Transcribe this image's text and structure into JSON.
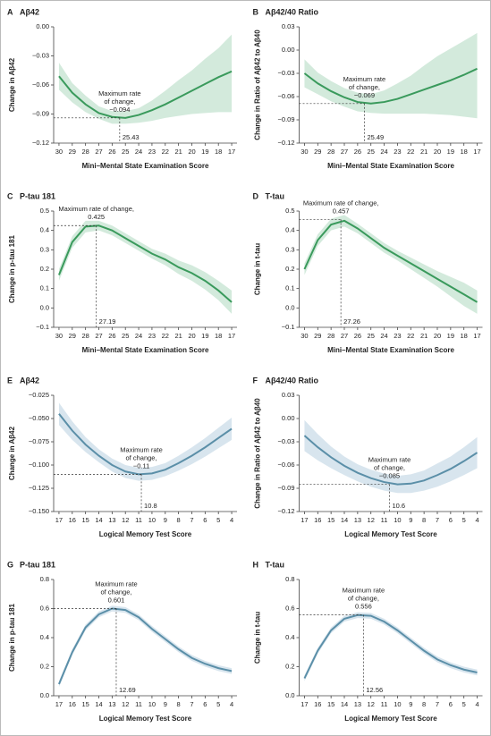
{
  "chart_data": [
    {
      "type": "line",
      "panel": "A",
      "title": "Aβ42",
      "y_label": "Change in Aβ42",
      "x_label": "Mini–Mental State Examination Score",
      "x": [
        30,
        29,
        28,
        27,
        26,
        25,
        24,
        23,
        22,
        21,
        20,
        19,
        18,
        17
      ],
      "xlim": [
        30.4,
        16.6
      ],
      "xticks": [
        30,
        29,
        28,
        27,
        26,
        25,
        24,
        23,
        22,
        21,
        20,
        19,
        18,
        17
      ],
      "ylim": [
        -0.12,
        0.0
      ],
      "yticks": [
        {
          "value": 0.0,
          "label": "0.00"
        },
        {
          "value": -0.03,
          "label": "−0.03"
        },
        {
          "value": -0.06,
          "label": "−0.06"
        },
        {
          "value": -0.09,
          "label": "−0.09"
        },
        {
          "value": -0.12,
          "label": "−0.12"
        }
      ],
      "series": [
        {
          "color": "#3a9a5c",
          "band_color": "#d3eadc",
          "values": [
            -0.051,
            -0.068,
            -0.08,
            -0.089,
            -0.093,
            -0.094,
            -0.091,
            -0.086,
            -0.08,
            -0.073,
            -0.066,
            -0.059,
            -0.052,
            -0.046
          ],
          "lower": [
            -0.065,
            -0.078,
            -0.088,
            -0.095,
            -0.1,
            -0.1,
            -0.099,
            -0.097,
            -0.094,
            -0.092,
            -0.09,
            -0.089,
            -0.088,
            -0.088
          ],
          "upper": [
            -0.037,
            -0.058,
            -0.071,
            -0.082,
            -0.087,
            -0.087,
            -0.084,
            -0.076,
            -0.066,
            -0.055,
            -0.045,
            -0.033,
            -0.022,
            -0.008
          ]
        }
      ],
      "annotation": [
        "Maximum rate",
        "of change,"
      ],
      "peak": {
        "x": 25.43,
        "y": -0.094,
        "y_label": "−0.094"
      }
    },
    {
      "type": "line",
      "panel": "B",
      "title": "Aβ42/40 Ratio",
      "y_label": "Change in Ratio of Aβ42 to Aβ40",
      "x_label": "Mini–Mental State Examination Score",
      "x": [
        30,
        29,
        28,
        27,
        26,
        25,
        24,
        23,
        22,
        21,
        20,
        19,
        18,
        17
      ],
      "xlim": [
        30.4,
        16.6
      ],
      "xticks": [
        30,
        29,
        28,
        27,
        26,
        25,
        24,
        23,
        22,
        21,
        20,
        19,
        18,
        17
      ],
      "ylim": [
        -0.12,
        0.03
      ],
      "yticks": [
        0.03,
        {
          "value": 0.0,
          "label": "0.00"
        },
        {
          "value": -0.03,
          "label": "−0.03"
        },
        {
          "value": -0.06,
          "label": "−0.06"
        },
        {
          "value": -0.09,
          "label": "−0.09"
        },
        {
          "value": -0.12,
          "label": "−0.12"
        }
      ],
      "series": [
        {
          "color": "#3a9a5c",
          "band_color": "#d3eadc",
          "values": [
            -0.03,
            -0.043,
            -0.053,
            -0.061,
            -0.067,
            -0.069,
            -0.067,
            -0.063,
            -0.057,
            -0.051,
            -0.045,
            -0.039,
            -0.032,
            -0.024
          ],
          "lower": [
            -0.048,
            -0.057,
            -0.066,
            -0.073,
            -0.079,
            -0.081,
            -0.082,
            -0.082,
            -0.082,
            -0.082,
            -0.083,
            -0.084,
            -0.086,
            -0.088
          ],
          "upper": [
            -0.012,
            -0.029,
            -0.04,
            -0.049,
            -0.055,
            -0.057,
            -0.052,
            -0.043,
            -0.033,
            -0.02,
            -0.008,
            0.002,
            0.012,
            0.022
          ]
        }
      ],
      "annotation": [
        "Maximum rate",
        "of change,"
      ],
      "peak": {
        "x": 25.49,
        "y": -0.069,
        "y_label": "−0.069"
      }
    },
    {
      "type": "line",
      "panel": "C",
      "title": "P-tau 181",
      "y_label": "Change in p-tau 181",
      "x_label": "Mini–Mental State Examination Score",
      "x": [
        30,
        29,
        28,
        27,
        26,
        25,
        24,
        23,
        22,
        21,
        20,
        19,
        18,
        17
      ],
      "xlim": [
        30.4,
        16.6
      ],
      "xticks": [
        30,
        29,
        28,
        27,
        26,
        25,
        24,
        23,
        22,
        21,
        20,
        19,
        18,
        17
      ],
      "ylim": [
        -0.1,
        0.5
      ],
      "yticks": [
        0.5,
        0.4,
        0.3,
        0.2,
        0.1,
        {
          "value": 0.0,
          "label": "0.0"
        },
        {
          "value": -0.1,
          "label": "−0.1"
        }
      ],
      "series": [
        {
          "color": "#3a9a5c",
          "band_color": "#d3eadc",
          "values": [
            0.17,
            0.34,
            0.42,
            0.425,
            0.4,
            0.36,
            0.32,
            0.28,
            0.25,
            0.21,
            0.18,
            0.14,
            0.09,
            0.03
          ],
          "lower": [
            0.14,
            0.31,
            0.39,
            0.4,
            0.375,
            0.335,
            0.295,
            0.255,
            0.22,
            0.175,
            0.14,
            0.095,
            0.04,
            -0.03
          ],
          "upper": [
            0.2,
            0.37,
            0.45,
            0.45,
            0.425,
            0.385,
            0.345,
            0.305,
            0.28,
            0.245,
            0.22,
            0.185,
            0.14,
            0.09
          ]
        }
      ],
      "annotation": [
        "Maximum rate of change,"
      ],
      "peak": {
        "x": 27.19,
        "y": 0.425
      }
    },
    {
      "type": "line",
      "panel": "D",
      "title": "T-tau",
      "y_label": "Change in t-tau",
      "x_label": "Mini–Mental State Examination Score",
      "x": [
        30,
        29,
        28,
        27,
        26,
        25,
        24,
        23,
        22,
        21,
        20,
        19,
        18,
        17
      ],
      "xlim": [
        30.4,
        16.6
      ],
      "xticks": [
        30,
        29,
        28,
        27,
        26,
        25,
        24,
        23,
        22,
        21,
        20,
        19,
        18,
        17
      ],
      "ylim": [
        -0.1,
        0.5
      ],
      "yticks": [
        0.5,
        0.4,
        0.3,
        0.2,
        0.1,
        {
          "value": 0.0,
          "label": "0.0"
        },
        {
          "value": -0.1,
          "label": "−0.1"
        }
      ],
      "series": [
        {
          "color": "#3a9a5c",
          "band_color": "#d3eadc",
          "values": [
            0.2,
            0.35,
            0.43,
            0.45,
            0.41,
            0.36,
            0.31,
            0.27,
            0.23,
            0.19,
            0.15,
            0.11,
            0.07,
            0.03
          ],
          "lower": [
            0.17,
            0.32,
            0.4,
            0.42,
            0.385,
            0.335,
            0.285,
            0.245,
            0.2,
            0.155,
            0.11,
            0.06,
            0.01,
            -0.03
          ],
          "upper": [
            0.23,
            0.38,
            0.46,
            0.48,
            0.435,
            0.385,
            0.335,
            0.295,
            0.26,
            0.225,
            0.19,
            0.16,
            0.13,
            0.09
          ]
        }
      ],
      "annotation": [
        "Maximum rate of change,"
      ],
      "peak": {
        "x": 27.26,
        "y": 0.457
      }
    },
    {
      "type": "line",
      "panel": "E",
      "title": "Aβ42",
      "y_label": "Change in Aβ42",
      "x_label": "Logical Memory Test Score",
      "x": [
        17,
        16,
        15,
        14,
        13,
        12,
        11,
        10,
        9,
        8,
        7,
        6,
        5,
        4
      ],
      "xlim": [
        17.4,
        3.6
      ],
      "xticks": [
        17,
        16,
        15,
        14,
        13,
        12,
        11,
        10,
        9,
        8,
        7,
        6,
        5,
        4
      ],
      "ylim": [
        -0.15,
        -0.025
      ],
      "yticks": [
        {
          "value": -0.025,
          "label": "−0.025"
        },
        {
          "value": -0.05,
          "label": "−0.050"
        },
        {
          "value": -0.075,
          "label": "−0.075"
        },
        {
          "value": -0.1,
          "label": "−0.100"
        },
        {
          "value": -0.125,
          "label": "−0.125"
        },
        {
          "value": -0.15,
          "label": "−0.150"
        }
      ],
      "series": [
        {
          "color": "#5b8fa8",
          "band_color": "#d8e5ee",
          "values": [
            -0.045,
            -0.063,
            -0.078,
            -0.09,
            -0.1,
            -0.107,
            -0.11,
            -0.109,
            -0.105,
            -0.098,
            -0.09,
            -0.081,
            -0.071,
            -0.061
          ],
          "lower": [
            -0.057,
            -0.073,
            -0.086,
            -0.097,
            -0.107,
            -0.114,
            -0.117,
            -0.116,
            -0.112,
            -0.106,
            -0.099,
            -0.091,
            -0.082,
            -0.073
          ],
          "upper": [
            -0.033,
            -0.053,
            -0.07,
            -0.083,
            -0.093,
            -0.1,
            -0.103,
            -0.102,
            -0.098,
            -0.09,
            -0.081,
            -0.071,
            -0.06,
            -0.049
          ]
        }
      ],
      "annotation": [
        "Maximum rate",
        "of change,"
      ],
      "peak": {
        "x": 10.8,
        "y": -0.11,
        "y_label": "−0.11"
      }
    },
    {
      "type": "line",
      "panel": "F",
      "title": "Aβ42/40 Ratio",
      "y_label": "Change in Ratio of Aβ42 to Aβ40",
      "x_label": "Logical Memory Test Score",
      "x": [
        17,
        16,
        15,
        14,
        13,
        12,
        11,
        10,
        9,
        8,
        7,
        6,
        5,
        4
      ],
      "xlim": [
        17.4,
        3.6
      ],
      "xticks": [
        17,
        16,
        15,
        14,
        13,
        12,
        11,
        10,
        9,
        8,
        7,
        6,
        5,
        4
      ],
      "ylim": [
        -0.12,
        0.03
      ],
      "yticks": [
        0.03,
        {
          "value": 0.0,
          "label": "0.00"
        },
        {
          "value": -0.03,
          "label": "−0.03"
        },
        {
          "value": -0.06,
          "label": "−0.06"
        },
        {
          "value": -0.09,
          "label": "−0.09"
        },
        {
          "value": -0.12,
          "label": "−0.12"
        }
      ],
      "series": [
        {
          "color": "#5b8fa8",
          "band_color": "#d8e5ee",
          "values": [
            -0.022,
            -0.037,
            -0.05,
            -0.061,
            -0.07,
            -0.077,
            -0.082,
            -0.085,
            -0.084,
            -0.08,
            -0.073,
            -0.065,
            -0.055,
            -0.044
          ],
          "lower": [
            -0.042,
            -0.054,
            -0.064,
            -0.073,
            -0.081,
            -0.088,
            -0.093,
            -0.096,
            -0.096,
            -0.093,
            -0.088,
            -0.081,
            -0.073,
            -0.064
          ],
          "upper": [
            -0.002,
            -0.02,
            -0.036,
            -0.049,
            -0.059,
            -0.066,
            -0.071,
            -0.074,
            -0.072,
            -0.067,
            -0.058,
            -0.049,
            -0.037,
            -0.024
          ]
        }
      ],
      "annotation": [
        "Maximum rate",
        "of change,"
      ],
      "peak": {
        "x": 10.6,
        "y": -0.085,
        "y_label": "−0.085"
      }
    },
    {
      "type": "line",
      "panel": "G",
      "title": "P-tau 181",
      "y_label": "Change in p-tau 181",
      "x_label": "Logical Memory Test Score",
      "x": [
        17,
        16,
        15,
        14,
        13,
        12,
        11,
        10,
        9,
        8,
        7,
        6,
        5,
        4
      ],
      "xlim": [
        17.4,
        3.6
      ],
      "xticks": [
        17,
        16,
        15,
        14,
        13,
        12,
        11,
        10,
        9,
        8,
        7,
        6,
        5,
        4
      ],
      "ylim": [
        0.0,
        0.8
      ],
      "yticks": [
        {
          "value": 0.0,
          "label": "0.0"
        },
        0.2,
        0.4,
        0.6,
        0.8
      ],
      "series": [
        {
          "color": "#5b8fa8",
          "band_color": "#d8e5ee",
          "values": [
            0.08,
            0.3,
            0.47,
            0.56,
            0.6,
            0.59,
            0.54,
            0.46,
            0.39,
            0.32,
            0.26,
            0.22,
            0.19,
            0.17
          ],
          "lower": [
            0.06,
            0.28,
            0.45,
            0.54,
            0.58,
            0.57,
            0.52,
            0.44,
            0.37,
            0.3,
            0.24,
            0.2,
            0.17,
            0.15
          ],
          "upper": [
            0.1,
            0.32,
            0.49,
            0.58,
            0.62,
            0.61,
            0.56,
            0.48,
            0.41,
            0.34,
            0.28,
            0.24,
            0.21,
            0.19
          ]
        }
      ],
      "annotation": [
        "Maximum rate",
        "of change,"
      ],
      "peak": {
        "x": 12.69,
        "y": 0.601
      }
    },
    {
      "type": "line",
      "panel": "H",
      "title": "T-tau",
      "y_label": "Change in t-tau",
      "x_label": "Logical Memory Test Score",
      "x": [
        17,
        16,
        15,
        14,
        13,
        12,
        11,
        10,
        9,
        8,
        7,
        6,
        5,
        4
      ],
      "xlim": [
        17.4,
        3.6
      ],
      "xticks": [
        17,
        16,
        15,
        14,
        13,
        12,
        11,
        10,
        9,
        8,
        7,
        6,
        5,
        4
      ],
      "ylim": [
        0.0,
        0.8
      ],
      "yticks": [
        {
          "value": 0.0,
          "label": "0.0"
        },
        0.2,
        0.4,
        0.6,
        0.8
      ],
      "series": [
        {
          "color": "#5b8fa8",
          "band_color": "#d8e5ee",
          "values": [
            0.12,
            0.31,
            0.45,
            0.53,
            0.555,
            0.55,
            0.51,
            0.45,
            0.38,
            0.31,
            0.25,
            0.21,
            0.18,
            0.16
          ],
          "lower": [
            0.1,
            0.29,
            0.43,
            0.51,
            0.535,
            0.53,
            0.49,
            0.43,
            0.36,
            0.29,
            0.23,
            0.19,
            0.16,
            0.14
          ],
          "upper": [
            0.14,
            0.33,
            0.47,
            0.55,
            0.575,
            0.57,
            0.53,
            0.47,
            0.4,
            0.33,
            0.27,
            0.23,
            0.2,
            0.18
          ]
        }
      ],
      "annotation": [
        "Maximum rate",
        "of change,"
      ],
      "peak": {
        "x": 12.56,
        "y": 0.556
      }
    }
  ]
}
